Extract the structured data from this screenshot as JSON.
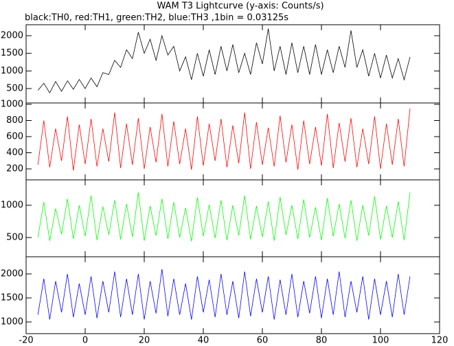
{
  "chart_data": [
    {
      "type": "line",
      "title": "WAM T3 Lightcurve (y-axis: Counts/s)",
      "subtitle": "black:TH0, red:TH1, green:TH2, blue:TH3 ,1bin = 0.03125s",
      "x": [
        -16,
        -14,
        -12,
        -10,
        -8,
        -6,
        -4,
        -2,
        0,
        2,
        4,
        6,
        8,
        10,
        12,
        14,
        16,
        18,
        20,
        22,
        24,
        26,
        28,
        30,
        32,
        34,
        36,
        38,
        40,
        42,
        44,
        46,
        48,
        50,
        52,
        54,
        56,
        58,
        60,
        62,
        64,
        66,
        68,
        70,
        72,
        74,
        76,
        78,
        80,
        82,
        84,
        86,
        88,
        90,
        92,
        94,
        96,
        98,
        100,
        102,
        104,
        106,
        108,
        110
      ],
      "series": [
        {
          "color": "#000000",
          "values": [
            450,
            650,
            380,
            700,
            420,
            720,
            480,
            760,
            500,
            800,
            550,
            950,
            900,
            1300,
            1100,
            1600,
            1350,
            2100,
            1500,
            1900,
            1300,
            2000,
            1450,
            1700,
            1000,
            1400,
            750,
            1500,
            850,
            1600,
            900,
            1700,
            1000,
            1750,
            950,
            1500,
            900,
            1800,
            1200,
            2200,
            1000,
            1700,
            900,
            1800,
            950,
            1700,
            900,
            1750,
            900,
            1600,
            950,
            1700,
            1100,
            2150,
            1100,
            1600,
            850,
            1500,
            800,
            1450,
            800,
            1350,
            750,
            1400
          ]
        }
      ],
      "xlim": [
        -20,
        120
      ],
      "ylim": [
        91,
        2312
      ],
      "yticks": [
        500,
        1000,
        1500,
        2000
      ]
    },
    {
      "type": "line",
      "x": [
        -16,
        -14,
        -12,
        -10,
        -8,
        -6,
        -4,
        -2,
        0,
        2,
        4,
        6,
        8,
        10,
        12,
        14,
        16,
        18,
        20,
        22,
        24,
        26,
        28,
        30,
        32,
        34,
        36,
        38,
        40,
        42,
        44,
        46,
        48,
        50,
        52,
        54,
        56,
        58,
        60,
        62,
        64,
        66,
        68,
        70,
        72,
        74,
        76,
        78,
        80,
        82,
        84,
        86,
        88,
        90,
        92,
        94,
        96,
        98,
        100,
        102,
        104,
        106,
        108,
        110
      ],
      "series": [
        {
          "color": "#ff0000",
          "values": [
            250,
            800,
            220,
            700,
            300,
            850,
            180,
            750,
            260,
            820,
            230,
            700,
            290,
            900,
            210,
            760,
            250,
            830,
            200,
            720,
            280,
            880,
            230,
            790,
            260,
            700,
            190,
            850,
            240,
            760,
            300,
            820,
            220,
            740,
            270,
            900,
            200,
            780,
            250,
            710,
            230,
            860,
            280,
            750,
            190,
            800,
            260,
            720,
            240,
            880,
            210,
            770,
            290,
            830,
            220,
            700,
            260,
            850,
            200,
            760,
            250,
            820,
            230,
            950
          ]
        }
      ],
      "xlim": [
        -20,
        120
      ],
      "ylim": [
        64,
        1017
      ],
      "yticks": [
        200,
        400,
        600,
        800,
        1000
      ]
    },
    {
      "type": "line",
      "x": [
        -16,
        -14,
        -12,
        -10,
        -8,
        -6,
        -4,
        -2,
        0,
        2,
        4,
        6,
        8,
        10,
        12,
        14,
        16,
        18,
        20,
        22,
        24,
        26,
        28,
        30,
        32,
        34,
        36,
        38,
        40,
        42,
        44,
        46,
        48,
        50,
        52,
        54,
        56,
        58,
        60,
        62,
        64,
        66,
        68,
        70,
        72,
        74,
        76,
        78,
        80,
        82,
        84,
        86,
        88,
        90,
        92,
        94,
        96,
        98,
        100,
        102,
        104,
        106,
        108,
        110
      ],
      "series": [
        {
          "color": "#00ff00",
          "values": [
            500,
            1050,
            450,
            950,
            550,
            1100,
            480,
            1000,
            520,
            1150,
            460,
            980,
            540,
            1080,
            470,
            1020,
            510,
            1200,
            450,
            990,
            530,
            1100,
            480,
            1050,
            500,
            960,
            440,
            1120,
            520,
            1010,
            490,
            1080,
            460,
            1000,
            530,
            1150,
            470,
            990,
            510,
            1060,
            450,
            1130,
            540,
            1000,
            480,
            1090,
            500,
            970,
            460,
            1110,
            520,
            1020,
            490,
            1080,
            450,
            1000,
            530,
            1140,
            470,
            990,
            500,
            1060,
            460,
            1200
          ]
        }
      ],
      "xlim": [
        -20,
        120
      ],
      "ylim": [
        202,
        1394
      ],
      "yticks": [
        500,
        1000
      ]
    },
    {
      "type": "line",
      "x": [
        -16,
        -14,
        -12,
        -10,
        -8,
        -6,
        -4,
        -2,
        0,
        2,
        4,
        6,
        8,
        10,
        12,
        14,
        16,
        18,
        20,
        22,
        24,
        26,
        28,
        30,
        32,
        34,
        36,
        38,
        40,
        42,
        44,
        46,
        48,
        50,
        52,
        54,
        56,
        58,
        60,
        62,
        64,
        66,
        68,
        70,
        72,
        74,
        76,
        78,
        80,
        82,
        84,
        86,
        88,
        90,
        92,
        94,
        96,
        98,
        100,
        102,
        104,
        106,
        108,
        110
      ],
      "series": [
        {
          "color": "#0000ff",
          "values": [
            1150,
            1900,
            1050,
            1850,
            1200,
            2000,
            1100,
            1800,
            1150,
            1950,
            1080,
            1850,
            1200,
            2050,
            1100,
            1900,
            1150,
            2000,
            1050,
            1850,
            1180,
            2100,
            1120,
            1900,
            1150,
            1800,
            1050,
            1950,
            1200,
            1880,
            1100,
            2000,
            1150,
            1850,
            1080,
            2050,
            1120,
            1900,
            1200,
            1950,
            1050,
            1880,
            1150,
            2000,
            1100,
            1850,
            1180,
            1950,
            1080,
            1900,
            1150,
            2050,
            1100,
            1850,
            1200,
            1950,
            1050,
            1900,
            1150,
            1850,
            1100,
            2000,
            1150,
            1950
          ]
        }
      ],
      "xlim": [
        -20,
        120
      ],
      "ylim": [
        757,
        2357
      ],
      "yticks": [
        1000,
        1500,
        2000
      ],
      "xticks": [
        -20,
        0,
        20,
        40,
        60,
        80,
        100,
        120
      ]
    }
  ]
}
